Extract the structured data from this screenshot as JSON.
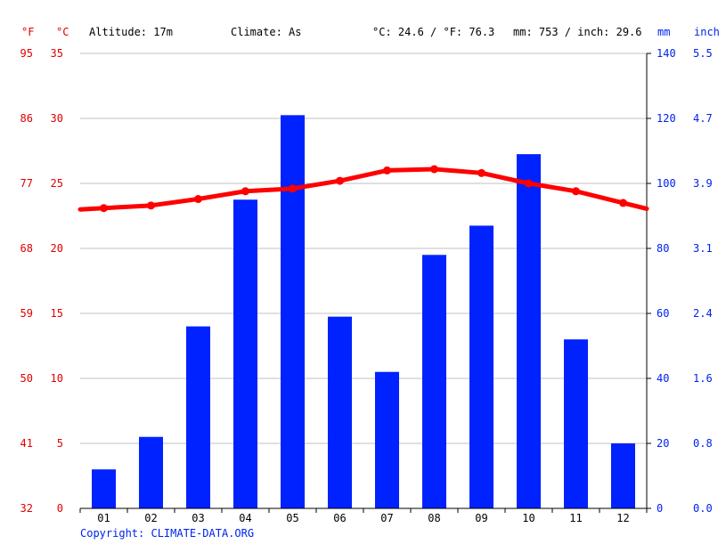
{
  "header": {
    "unit_f": "°F",
    "unit_c": "°C",
    "altitude": "Altitude: 17m",
    "climate": "Climate: As",
    "temp_summary": "°C: 24.6 / °F: 76.3",
    "precip_summary": "mm: 753 / inch: 29.6",
    "unit_mm": "mm",
    "unit_inch": "inch"
  },
  "copyright": "Copyright: CLIMATE-DATA.ORG",
  "colors": {
    "temperature": "#ff0000",
    "precipitation": "#0022ff",
    "temp_axis_text": "#e00000",
    "precip_axis_text": "#0022ee",
    "grid": "#c0c0c0"
  },
  "chart_data": {
    "type": "bar",
    "categories": [
      "01",
      "02",
      "03",
      "04",
      "05",
      "06",
      "07",
      "08",
      "09",
      "10",
      "11",
      "12"
    ],
    "series": [
      {
        "type": "bar",
        "axis": "right",
        "values": [
          12,
          22,
          56,
          95,
          121,
          59,
          42,
          78,
          87,
          109,
          52,
          20
        ]
      },
      {
        "type": "line",
        "axis": "left",
        "values": [
          23.1,
          23.3,
          23.8,
          24.4,
          24.6,
          25.2,
          26.0,
          26.1,
          25.8,
          25.0,
          24.4,
          23.5
        ]
      }
    ],
    "left_axis_c": {
      "ticks": [
        "0",
        "5",
        "10",
        "15",
        "20",
        "25",
        "30",
        "35"
      ],
      "ylim": [
        0,
        35
      ]
    },
    "left_axis_f": {
      "ticks": [
        "32",
        "41",
        "50",
        "59",
        "68",
        "77",
        "86",
        "95"
      ]
    },
    "right_axis_mm": {
      "ticks": [
        "0",
        "20",
        "40",
        "60",
        "80",
        "100",
        "120",
        "140"
      ],
      "ylim": [
        0,
        140
      ]
    },
    "right_axis_inch": {
      "ticks": [
        "0.0",
        "0.8",
        "1.6",
        "2.4",
        "3.1",
        "3.9",
        "4.7",
        "5.5"
      ]
    },
    "grid": true
  }
}
